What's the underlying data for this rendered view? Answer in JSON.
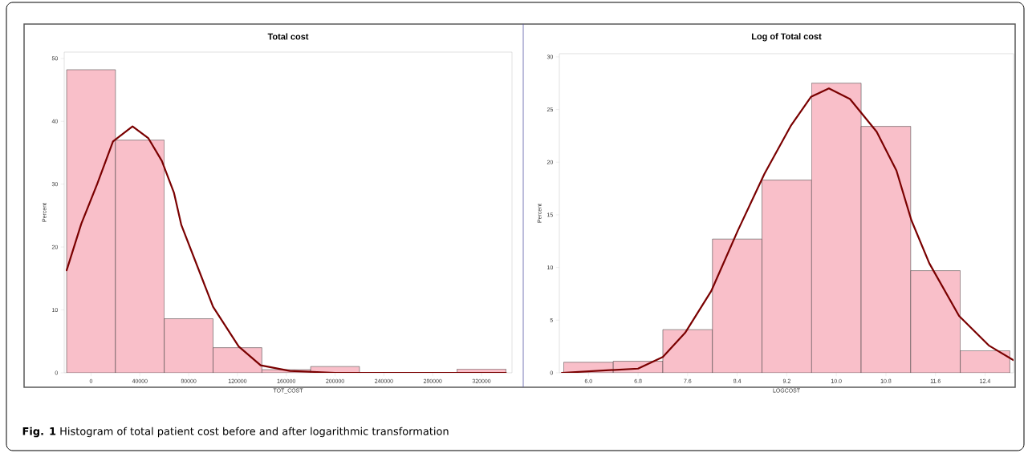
{
  "chart_data": [
    {
      "type": "histogram",
      "title": "Total cost",
      "xlabel": "TOT_COST",
      "ylabel": "Percent",
      "color": "#f9bfc9",
      "bins": [
        -20000,
        20000,
        60000,
        100000,
        140000,
        180000,
        220000,
        260000,
        300000,
        340000
      ],
      "values": [
        48.2,
        37.0,
        8.6,
        4.0,
        0.5,
        1.0,
        null,
        null,
        0.6
      ],
      "series": [
        {
          "type": "line",
          "color": "#7a0000",
          "x": [
            -20000,
            -8000,
            5000,
            18000,
            34000,
            47000,
            58000,
            68000,
            74000,
            100000,
            121000,
            139000,
            163000,
            200000,
            260000,
            340000
          ],
          "values": [
            16.3,
            23.7,
            30,
            36.8,
            39.2,
            37.3,
            33.7,
            28.6,
            23.5,
            10.5,
            4.2,
            1.2,
            0.3,
            0,
            0,
            0
          ]
        }
      ],
      "xlim": [
        -22000,
        345000
      ],
      "ylim": [
        0,
        51
      ],
      "xticks": [
        0,
        40000,
        80000,
        120000,
        160000,
        200000,
        240000,
        280000,
        320000
      ],
      "yticks": [
        0,
        10,
        20,
        30,
        40,
        50
      ],
      "annotations": [
        "**Fig. 1** Histogram of total patient cost before and after logarithmic transformation"
      ]
    },
    {
      "type": "histogram",
      "title": "Log of Total cost",
      "xlabel": "LOGCOST",
      "ylabel": "Percent",
      "color": "#f9bfc9",
      "bins": [
        5.6,
        6.4,
        7.2,
        8.0,
        8.8,
        9.6,
        10.4,
        11.2,
        12.0,
        12.8
      ],
      "values": [
        1.0,
        1.1,
        4.1,
        12.7,
        18.3,
        27.5,
        23.4,
        9.7,
        2.1
      ],
      "series": [
        {
          "type": "line",
          "color": "#7a0000",
          "x": [
            5.57,
            6.8,
            7.2,
            7.56,
            7.98,
            8.41,
            8.84,
            9.27,
            9.59,
            9.88,
            10.22,
            10.65,
            10.97,
            11.21,
            11.5,
            11.98,
            12.46,
            12.86
          ],
          "values": [
            0,
            0.4,
            1.5,
            3.8,
            7.75,
            13.5,
            18.9,
            23.5,
            26.2,
            27.0,
            26.0,
            22.9,
            19.2,
            14.5,
            10.4,
            5.4,
            2.6,
            1.2
          ]
        }
      ],
      "xlim": [
        5.53,
        12.86
      ],
      "ylim": [
        0,
        30.3
      ],
      "xticks": [
        {
          "value": 6.0,
          "label": "6.0"
        },
        {
          "value": 6.8,
          "label": "6.8"
        },
        {
          "value": 7.6,
          "label": "7.6"
        },
        {
          "value": 8.4,
          "label": "8.4"
        },
        {
          "value": 9.2,
          "label": "9.2"
        },
        {
          "value": 10.0,
          "label": "10.0"
        },
        {
          "value": 10.8,
          "label": "10.8"
        },
        {
          "value": 11.6,
          "label": "11.6"
        },
        {
          "value": 12.4,
          "label": "12.4"
        }
      ],
      "yticks": [
        0,
        5,
        10,
        15,
        20,
        25,
        30
      ]
    }
  ]
}
